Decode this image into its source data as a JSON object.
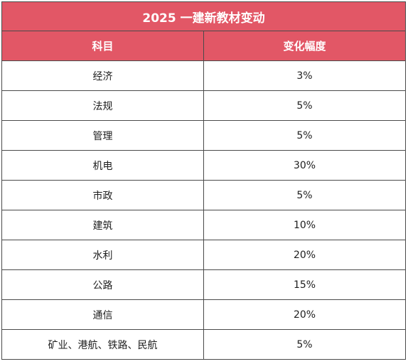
{
  "table": {
    "title": "2025 一建新教材变动",
    "headers": {
      "subject": "科目",
      "change": "变化幅度"
    },
    "rows": [
      {
        "subject": "经济",
        "change": "3%"
      },
      {
        "subject": "法规",
        "change": "5%"
      },
      {
        "subject": "管理",
        "change": "5%"
      },
      {
        "subject": "机电",
        "change": "30%"
      },
      {
        "subject": "市政",
        "change": "5%"
      },
      {
        "subject": "建筑",
        "change": "10%"
      },
      {
        "subject": "水利",
        "change": "20%"
      },
      {
        "subject": "公路",
        "change": "15%"
      },
      {
        "subject": "通信",
        "change": "20%"
      },
      {
        "subject": "矿业、港航、铁路、民航",
        "change": "5%"
      }
    ]
  },
  "colors": {
    "header_bg": "#e25766",
    "header_text": "#ffffff",
    "border": "#4a4a4a",
    "body_text": "#1e1e1e"
  }
}
